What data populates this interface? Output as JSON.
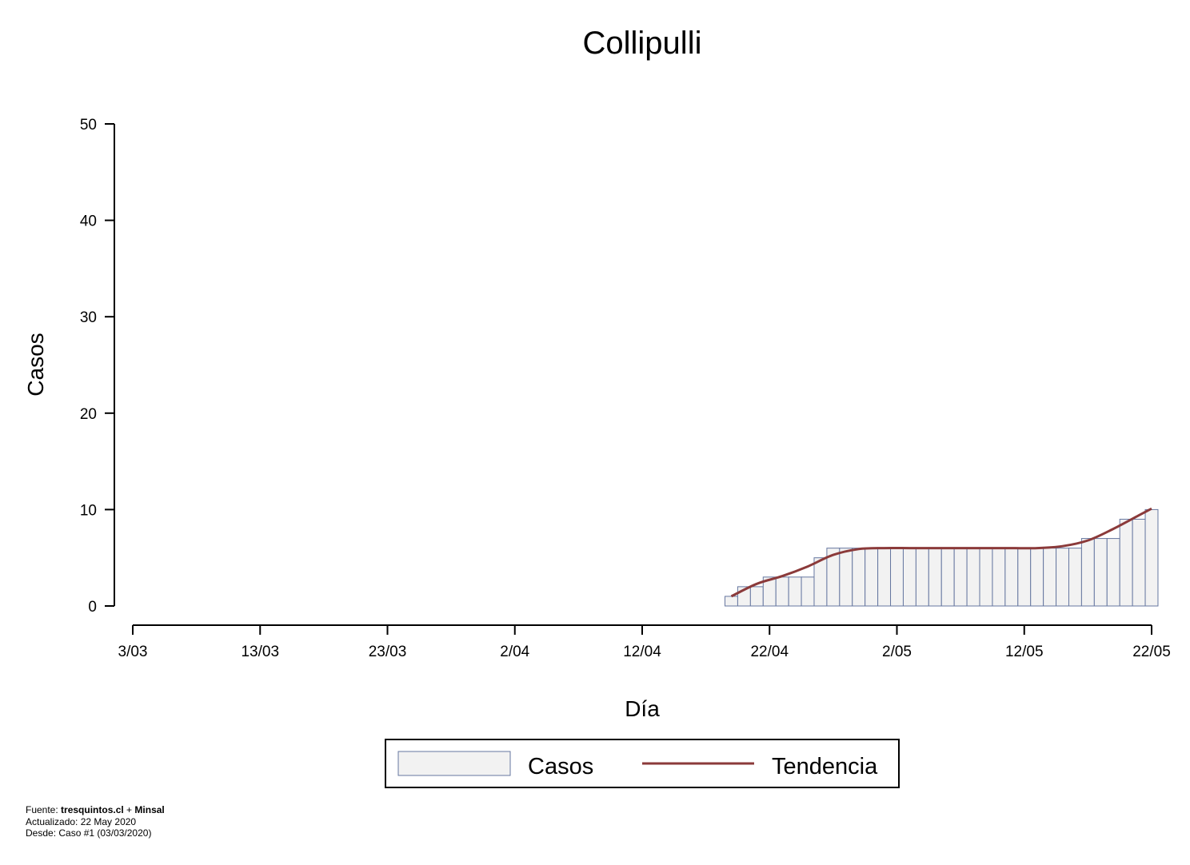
{
  "chart_data": {
    "type": "bar",
    "title": "Collipulli",
    "xlabel": "Día",
    "ylabel": "Casos",
    "ylim": [
      0,
      50
    ],
    "yticks": [
      0,
      10,
      20,
      30,
      40,
      50
    ],
    "xlim": [
      "2020-03-03",
      "2020-05-22"
    ],
    "xticks": [
      {
        "label": "3/03",
        "date": "2020-03-03"
      },
      {
        "label": "13/03",
        "date": "2020-03-13"
      },
      {
        "label": "23/03",
        "date": "2020-03-23"
      },
      {
        "label": "2/04",
        "date": "2020-04-02"
      },
      {
        "label": "12/04",
        "date": "2020-04-12"
      },
      {
        "label": "22/04",
        "date": "2020-04-22"
      },
      {
        "label": "2/05",
        "date": "2020-05-02"
      },
      {
        "label": "12/05",
        "date": "2020-05-12"
      },
      {
        "label": "22/05",
        "date": "2020-05-22"
      }
    ],
    "series": [
      {
        "name": "Casos",
        "style": "bar",
        "color": "#f2f2f2",
        "edge_color": "#6677a0",
        "x": [
          "2020-04-18",
          "2020-04-19",
          "2020-04-20",
          "2020-04-21",
          "2020-04-22",
          "2020-04-23",
          "2020-04-24",
          "2020-04-25",
          "2020-04-26",
          "2020-04-27",
          "2020-04-28",
          "2020-04-29",
          "2020-04-30",
          "2020-05-01",
          "2020-05-02",
          "2020-05-03",
          "2020-05-04",
          "2020-05-05",
          "2020-05-06",
          "2020-05-07",
          "2020-05-08",
          "2020-05-09",
          "2020-05-10",
          "2020-05-11",
          "2020-05-12",
          "2020-05-13",
          "2020-05-14",
          "2020-05-15",
          "2020-05-16",
          "2020-05-17",
          "2020-05-18",
          "2020-05-19",
          "2020-05-20",
          "2020-05-21"
        ],
        "values": [
          1,
          2,
          2,
          3,
          3,
          3,
          3,
          5,
          6,
          6,
          6,
          6,
          6,
          6,
          6,
          6,
          6,
          6,
          6,
          6,
          6,
          6,
          6,
          6,
          6,
          6,
          6,
          6,
          7,
          7,
          7,
          9,
          9,
          10
        ]
      },
      {
        "name": "Tendencia",
        "style": "line",
        "color": "#8b3a3a",
        "x": [
          "2020-04-18",
          "2020-04-20",
          "2020-04-22",
          "2020-04-24",
          "2020-04-26",
          "2020-04-28",
          "2020-04-30",
          "2020-05-02",
          "2020-05-04",
          "2020-05-06",
          "2020-05-08",
          "2020-05-10",
          "2020-05-12",
          "2020-05-14",
          "2020-05-16",
          "2020-05-18",
          "2020-05-20",
          "2020-05-21"
        ],
        "values": [
          1.0,
          2.3,
          3.1,
          4.1,
          5.3,
          5.9,
          6.0,
          6.0,
          6.0,
          6.0,
          6.0,
          6.0,
          6.0,
          6.2,
          6.8,
          8.0,
          9.4,
          10.1
        ]
      }
    ],
    "legend": {
      "position": "bottom-center",
      "entries": [
        "Casos",
        "Tendencia"
      ]
    },
    "grid": false
  },
  "footer": {
    "source_prefix": "Fuente: ",
    "source_site": "tresquintos.cl",
    "source_join": " + ",
    "source_org": "Minsal",
    "updated": "Actualizado: 22 May 2020",
    "since": "Desde: Caso #1  (03/03/2020)"
  }
}
